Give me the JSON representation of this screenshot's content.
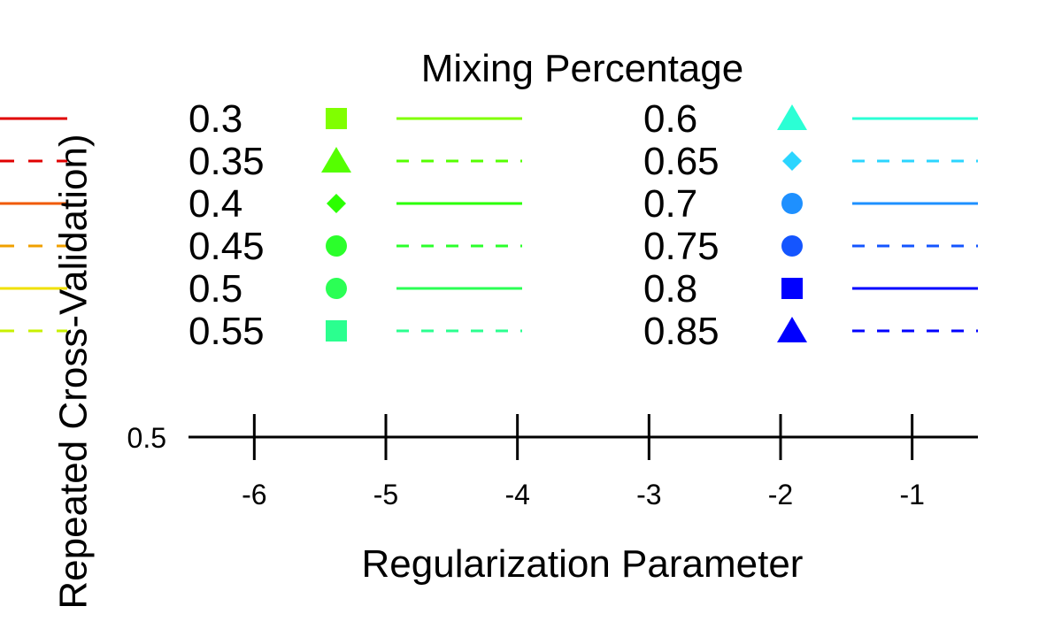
{
  "chart_data": {
    "type": "line",
    "legend": {
      "title": "Mixing Percentage",
      "placement": "top",
      "columns": 2,
      "entries": [
        {
          "label": "0.3",
          "color": "#80ff00",
          "marker": "square",
          "line": "solid"
        },
        {
          "label": "0.35",
          "color": "#55ff00",
          "marker": "triangle",
          "line": "dashed"
        },
        {
          "label": "0.4",
          "color": "#2bff00",
          "marker": "diamond",
          "line": "solid"
        },
        {
          "label": "0.45",
          "color": "#2bff2b",
          "marker": "circle",
          "line": "dashed"
        },
        {
          "label": "0.5",
          "color": "#2bff55",
          "marker": "circle",
          "line": "solid"
        },
        {
          "label": "0.55",
          "color": "#2bff8f",
          "marker": "square",
          "line": "dashed"
        },
        {
          "label": "0.6",
          "color": "#2bffd5",
          "marker": "triangle",
          "line": "solid"
        },
        {
          "label": "0.65",
          "color": "#2bd5ff",
          "marker": "diamond",
          "line": "dashed"
        },
        {
          "label": "0.7",
          "color": "#1e90ff",
          "marker": "circle",
          "line": "solid"
        },
        {
          "label": "0.75",
          "color": "#1455ff",
          "marker": "circle",
          "line": "dashed"
        },
        {
          "label": "0.8",
          "color": "#0000ff",
          "marker": "square",
          "line": "solid"
        },
        {
          "label": "0.85",
          "color": "#0000ff",
          "marker": "triangle",
          "line": "dashed"
        }
      ]
    },
    "left_legend_fragment": [
      {
        "color": "#e00000",
        "line": "solid"
      },
      {
        "color": "#e00000",
        "line": "dashed"
      },
      {
        "color": "#f05a00",
        "line": "solid"
      },
      {
        "color": "#f0a000",
        "line": "dashed"
      },
      {
        "color": "#f0e000",
        "line": "solid"
      },
      {
        "color": "#c8f000",
        "line": "dashed"
      }
    ],
    "xlabel": "Regularization Parameter",
    "ylabel": "Repeated Cross-Validation)",
    "xlim": [
      -6.5,
      -0.5
    ],
    "xticks": [
      -6,
      -5,
      -4,
      -3,
      -2,
      -1
    ],
    "xtick_labels": [
      "-6",
      "-5",
      "-4",
      "-3",
      "-2",
      "-1"
    ],
    "yticks": [
      0.5
    ],
    "ytick_labels": [
      "0.5"
    ],
    "grid": false
  }
}
